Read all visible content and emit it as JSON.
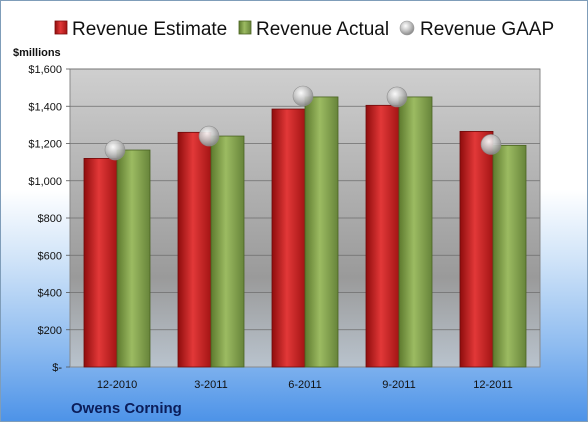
{
  "chart_data": {
    "type": "bar",
    "title": "",
    "ylabel": "$millions",
    "xlabel": "",
    "company": "Owens Corning",
    "categories": [
      "12-2010",
      "3-2011",
      "6-2011",
      "9-2011",
      "12-2011"
    ],
    "ylim": [
      0,
      1600
    ],
    "yticks": [
      0,
      200,
      400,
      600,
      800,
      1000,
      1200,
      1400,
      1600
    ],
    "ytick_labels": [
      "$-",
      "$200",
      "$400",
      "$600",
      "$800",
      "$1,000",
      "$1,200",
      "$1,400",
      "$1,600"
    ],
    "legend_position": "top",
    "grid": true,
    "series": [
      {
        "name": "Revenue Estimate",
        "kind": "bar",
        "color": "#d42020",
        "values": [
          1120,
          1260,
          1385,
          1405,
          1265
        ]
      },
      {
        "name": "Revenue Actual",
        "kind": "bar",
        "color": "#8aaa52",
        "values": [
          1165,
          1240,
          1450,
          1450,
          1190
        ]
      },
      {
        "name": "Revenue GAAP",
        "kind": "point",
        "color": "#b8b8b8",
        "values": [
          1165,
          1240,
          1455,
          1450,
          1195
        ]
      }
    ]
  }
}
